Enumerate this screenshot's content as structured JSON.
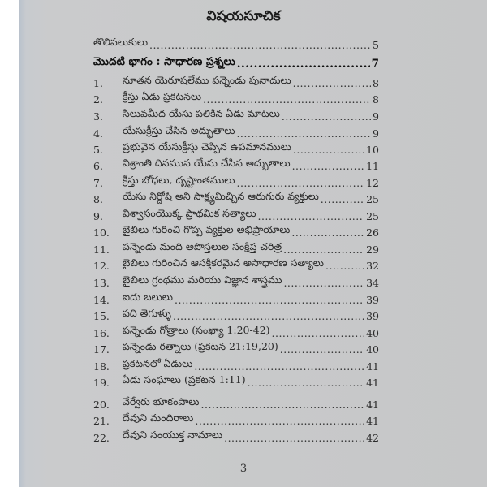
{
  "title": "విషయసూచిక",
  "entries": [
    {
      "num": "",
      "text": "తొలిపలుకులు",
      "page": "5"
    },
    {
      "num": "",
      "text": "మొదటి భాగం : సాధారణ ప్రశ్నలు",
      "page": "7",
      "bold": true
    },
    {
      "num": "1.",
      "text": "నూతన యెరూషలేము పన్నెండు పునాదులు",
      "page": "8"
    },
    {
      "num": "2.",
      "text": "క్రీస్తు ఏడు ప్రకటనలు",
      "page": "8"
    },
    {
      "num": "3.",
      "text": "సిలువమీద యేసు పలికిన ఏడు మాటలు",
      "page": "9"
    },
    {
      "num": "4.",
      "text": "యేసుక్రీస్తు చేసిన అద్భుతాలు",
      "page": "9"
    },
    {
      "num": "5.",
      "text": "ప్రభువైన యేసుక్రీస్తు చెప్పిన ఉపమానములు",
      "page": "10"
    },
    {
      "num": "6.",
      "text": "విశ్రాంతి దినమున యేసు చేసిన అద్భుతాలు",
      "page": "11"
    },
    {
      "num": "7.",
      "text": "క్రీస్తు బోధలు, దృష్టాంతములు",
      "page": "12"
    },
    {
      "num": "8.",
      "text": "యేసు నిర్దోషి అని సాక్ష్యమిచ్చిన ఆరుగురు వ్యక్తులు",
      "page": "25"
    },
    {
      "num": "9.",
      "text": "విశ్వాసంయొక్క ప్రాథమిక సత్యాలు",
      "page": "25"
    },
    {
      "num": "10.",
      "text": "బైబిలు గురించి గొప్ప వ్యక్తుల అభిప్రాయాలు",
      "page": "26"
    },
    {
      "num": "11.",
      "text": "పన్నెండు మంది అపొస్తలుల సంక్షిప్త చరిత్ర",
      "page": "29"
    },
    {
      "num": "12.",
      "text": "బైబిలు గురించిన ఆసక్తికరమైన అసాధారణ సత్యాలు",
      "page": "32"
    },
    {
      "num": "13.",
      "text": "బైబిలు గ్రంథము మరియు విజ్ఞాన శాస్త్రము",
      "page": "34"
    },
    {
      "num": "14.",
      "text": "ఐదు బలులు",
      "page": "39"
    },
    {
      "num": "15.",
      "text": "పది తెగుళ్ళు",
      "page": "39"
    },
    {
      "num": "16.",
      "text": "పన్నెండు గోత్రాలు (సంఖ్యా 1:20-42)",
      "page": "40"
    },
    {
      "num": "17.",
      "text": "పన్నెండు రత్నాలు (ప్రకటన 21:19,20)",
      "page": "40"
    },
    {
      "num": "18.",
      "text": "ప్రకటనలో ఏడులు",
      "page": "41"
    },
    {
      "num": "19.",
      "text": "ఏడు సంఘాలు (ప్రకటన 1:11)",
      "page": "41"
    },
    {
      "num": "20.",
      "text": "వేర్వేరు భూకంపాలు",
      "page": "41"
    },
    {
      "num": "21.",
      "text": "దేవుని మందిరాలు",
      "page": "41"
    },
    {
      "num": "22.",
      "text": "దేవుని సంయుక్త నామాలు",
      "page": "42"
    }
  ],
  "folio": "3"
}
